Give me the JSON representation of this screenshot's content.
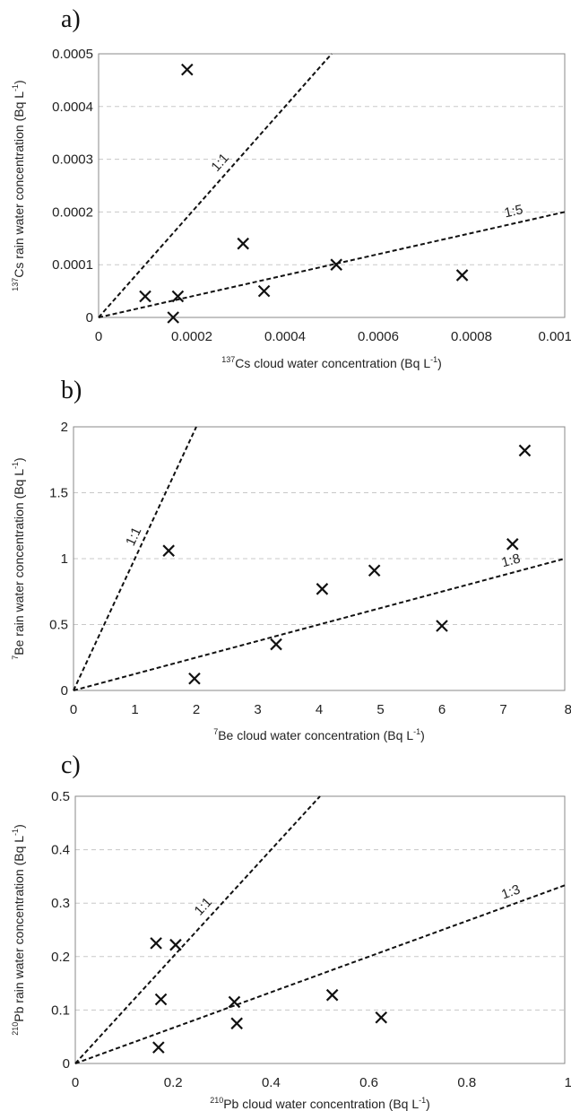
{
  "chart_data": [
    {
      "panel": "a)",
      "type": "scatter",
      "xlabel_pre": "137",
      "xlabel_main": "Cs cloud water concentration (Bq L",
      "xlabel_exp": "-1",
      "xlabel_post": ")",
      "ylabel_pre": "137",
      "ylabel_main": "Cs rain water concentration (Bq L",
      "ylabel_exp": "-1",
      "ylabel_post": ")",
      "xlim": [
        0,
        0.001
      ],
      "ylim": [
        0,
        0.0005
      ],
      "x_ticks": [
        "0",
        "0.0002",
        "0.0004",
        "0.0006",
        "0.0008",
        "0.001"
      ],
      "y_ticks": [
        "0",
        "0.0001",
        "0.0002",
        "0.0003",
        "0.0004",
        "0.0005"
      ],
      "grid": "horizontal dashed",
      "points": [
        {
          "x": 0.0001,
          "y": 4e-05
        },
        {
          "x": 0.00016,
          "y": 0.0
        },
        {
          "x": 0.00017,
          "y": 4e-05
        },
        {
          "x": 0.00019,
          "y": 0.00047
        },
        {
          "x": 0.00031,
          "y": 0.00014
        },
        {
          "x": 0.000355,
          "y": 5e-05
        },
        {
          "x": 0.00051,
          "y": 0.0001
        },
        {
          "x": 0.00078,
          "y": 8e-05
        }
      ],
      "lines": [
        {
          "label": "1:1",
          "slope": 1
        },
        {
          "label": "1:5",
          "slope": 0.2
        }
      ]
    },
    {
      "panel": "b)",
      "type": "scatter",
      "xlabel_pre": "7",
      "xlabel_main": "Be cloud water concentration (Bq L",
      "xlabel_exp": "-1",
      "xlabel_post": ")",
      "ylabel_pre": "7",
      "ylabel_main": "Be rain water concentration (Bq L",
      "ylabel_exp": "-1",
      "ylabel_post": ")",
      "xlim": [
        0,
        8
      ],
      "ylim": [
        0,
        2
      ],
      "x_ticks": [
        "0",
        "1",
        "2",
        "3",
        "4",
        "5",
        "6",
        "7",
        "8"
      ],
      "y_ticks": [
        "0",
        "0.5",
        "1",
        "1.5",
        "2"
      ],
      "grid": "horizontal dashed",
      "points": [
        {
          "x": 1.55,
          "y": 1.06
        },
        {
          "x": 1.97,
          "y": 0.09
        },
        {
          "x": 3.3,
          "y": 0.35
        },
        {
          "x": 4.05,
          "y": 0.77
        },
        {
          "x": 4.9,
          "y": 0.91
        },
        {
          "x": 6.0,
          "y": 0.49
        },
        {
          "x": 7.15,
          "y": 1.11
        },
        {
          "x": 7.35,
          "y": 1.82
        }
      ],
      "lines": [
        {
          "label": "1:1",
          "slope": 1
        },
        {
          "label": "1:8",
          "slope": 0.125
        }
      ]
    },
    {
      "panel": "c)",
      "type": "scatter",
      "xlabel_pre": "210",
      "xlabel_main": "Pb cloud water concentration (Bq L",
      "xlabel_exp": "-1",
      "xlabel_post": ")",
      "ylabel_pre": "210",
      "ylabel_main": "Pb rain water concentration (Bq L",
      "ylabel_exp": "-1",
      "ylabel_post": ")",
      "xlim": [
        0,
        1
      ],
      "ylim": [
        0,
        0.5
      ],
      "x_ticks": [
        "0",
        "0.2",
        "0.4",
        "0.6",
        "0.8",
        "1"
      ],
      "y_ticks": [
        "0",
        "0.1",
        "0.2",
        "0.3",
        "0.4",
        "0.5"
      ],
      "grid": "horizontal dashed",
      "points": [
        {
          "x": 0.165,
          "y": 0.225
        },
        {
          "x": 0.17,
          "y": 0.03
        },
        {
          "x": 0.175,
          "y": 0.12
        },
        {
          "x": 0.205,
          "y": 0.222
        },
        {
          "x": 0.325,
          "y": 0.115
        },
        {
          "x": 0.33,
          "y": 0.075
        },
        {
          "x": 0.525,
          "y": 0.128
        },
        {
          "x": 0.625,
          "y": 0.086
        }
      ],
      "lines": [
        {
          "label": "1:1",
          "slope": 1
        },
        {
          "label": "1:3",
          "slope": 0.3333
        }
      ]
    }
  ]
}
